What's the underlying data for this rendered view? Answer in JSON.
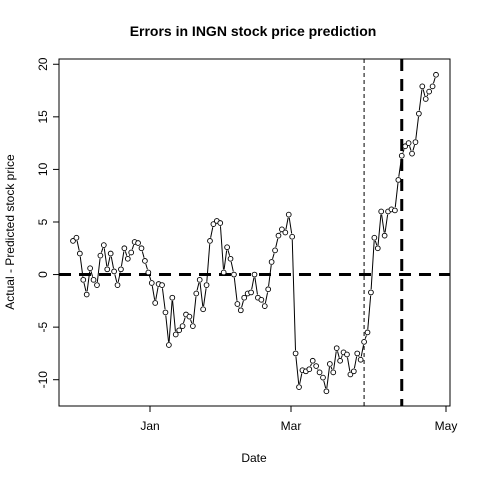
{
  "chart_data": {
    "type": "line",
    "title": "Errors in INGN stock price prediction",
    "xlabel": "Date",
    "ylabel": "Actual - Predicted stock price",
    "x_tick_labels": [
      "Jan",
      "Mar",
      "May"
    ],
    "y_ticks": [
      -10,
      -5,
      0,
      5,
      10,
      15,
      20
    ],
    "ylim": [
      -12.5,
      20.5
    ],
    "markers": "open-circle",
    "grid": false,
    "series": [
      {
        "values": [
          3.2,
          3.5,
          2.0,
          -0.5,
          -1.9,
          0.6,
          -0.5,
          -1.0,
          1.8,
          2.8,
          0.5,
          2.0,
          0.3,
          -1.0,
          0.5,
          2.5,
          1.5,
          2.1,
          3.1,
          3.0,
          2.5,
          1.3,
          0.2,
          -0.8,
          -2.7,
          -0.9,
          -1.0,
          -3.6,
          -6.7,
          -2.2,
          -5.7,
          -5.3,
          -4.9,
          -3.8,
          -4.0,
          -4.9,
          -1.8,
          -0.5,
          -3.3,
          -1.0,
          3.2,
          4.8,
          5.1,
          4.9,
          0.2,
          2.6,
          1.5,
          0.0,
          -2.8,
          -3.4,
          -2.2,
          -1.8,
          -1.7,
          0.0,
          -2.2,
          -2.4,
          -3.0,
          -1.4,
          1.2,
          2.3,
          3.7,
          4.3,
          4.0,
          5.7,
          3.6,
          -7.5,
          -10.7,
          -9.1,
          -9.2,
          -9.0,
          -8.2,
          -8.7,
          -9.3,
          -9.8,
          -11.1,
          -8.5,
          -9.3,
          -7.0,
          -8.2,
          -7.4,
          -7.6,
          -9.5,
          -9.2,
          -7.5,
          -8.1,
          -6.4,
          -5.5,
          -1.7,
          3.5,
          2.5,
          6.0,
          3.7,
          6.0,
          6.2,
          6.1,
          9.0,
          11.3,
          12.2,
          12.5,
          11.5,
          12.6,
          15.3,
          17.9,
          16.7,
          17.4,
          17.9,
          19.0
        ]
      }
    ],
    "reference_lines": [
      {
        "orientation": "horizontal",
        "value": 0,
        "style": "thick-dashed"
      },
      {
        "orientation": "vertical",
        "at_point_index": 85,
        "style": "thin-dashed"
      },
      {
        "orientation": "vertical",
        "at_point_index": 96,
        "style": "thick-dashed"
      }
    ]
  }
}
